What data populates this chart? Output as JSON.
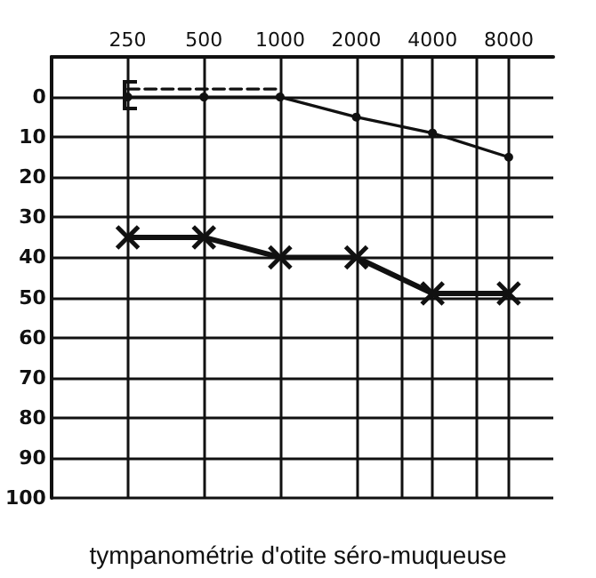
{
  "chart_data": {
    "type": "line",
    "log": "x",
    "annotations": [
      "tympanométrie d'otite séro-muqueuse"
    ],
    "xlim": [
      125,
      12000
    ],
    "xticks": [
      250,
      500,
      1000,
      2000,
      {
        "value": 3000,
        "label": null
      },
      4000,
      {
        "value": 6000,
        "label": null
      },
      8000
    ],
    "ylim": [
      100,
      -10
    ],
    "yticks": [
      {
        "value": -10,
        "label": null
      },
      0,
      10,
      20,
      30,
      40,
      50,
      60,
      70,
      80,
      90,
      100
    ],
    "grid": true,
    "series": [
      {
        "color": "#111111",
        "x": [
          250,
          500,
          1000,
          2000,
          4000,
          8000
        ],
        "values": [
          0,
          0,
          0,
          5,
          9,
          15
        ],
        "marker": "circle",
        "line_style": "solid"
      },
      {
        "color": "#111111",
        "x": [
          250,
          1000
        ],
        "values": [
          -2,
          -2
        ],
        "marker": "none",
        "line_style": "dashed"
      },
      {
        "color": "#111111",
        "x": [
          250,
          500,
          1000,
          2000,
          4000,
          8000
        ],
        "values": [
          35,
          35,
          40,
          40,
          49,
          49
        ],
        "marker": "cross",
        "line_style": "solid"
      }
    ]
  }
}
